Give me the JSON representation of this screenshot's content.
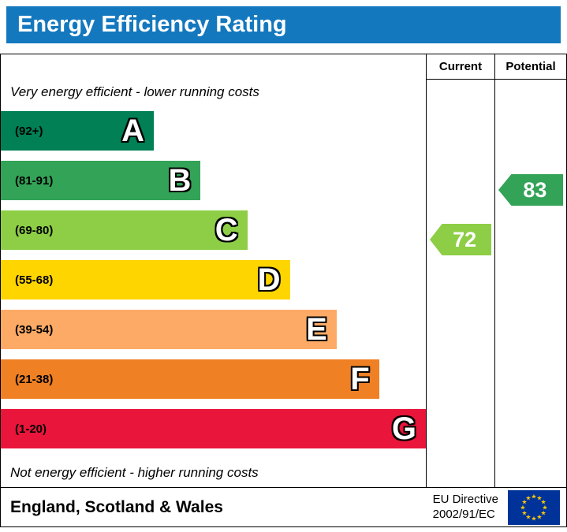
{
  "title": "Energy Efficiency Rating",
  "header": {
    "current": "Current",
    "potential": "Potential"
  },
  "notes": {
    "top": "Very energy efficient - lower running costs",
    "bottom": "Not energy efficient - higher running costs"
  },
  "footer": {
    "region": "England, Scotland & Wales",
    "directive_line1": "EU Directive",
    "directive_line2": "2002/91/EC"
  },
  "colors": {
    "title_bg": "#1478be",
    "title_text": "#ffffff",
    "flag_bg": "#003399",
    "flag_star": "#ffcc00"
  },
  "chart_data": {
    "type": "bar",
    "title": "Energy Efficiency Rating",
    "bands": [
      {
        "letter": "A",
        "range": "(92+)",
        "color": "#008054",
        "width_pct": 36
      },
      {
        "letter": "B",
        "range": "(81-91)",
        "color": "#33a357",
        "width_pct": 47
      },
      {
        "letter": "C",
        "range": "(69-80)",
        "color": "#8dce46",
        "width_pct": 58
      },
      {
        "letter": "D",
        "range": "(55-68)",
        "color": "#ffd500",
        "width_pct": 68
      },
      {
        "letter": "E",
        "range": "(39-54)",
        "color": "#fcaa65",
        "width_pct": 79
      },
      {
        "letter": "F",
        "range": "(21-38)",
        "color": "#ef8023",
        "width_pct": 89
      },
      {
        "letter": "G",
        "range": "(1-20)",
        "color": "#e9153b",
        "width_pct": 100
      }
    ],
    "current": {
      "label": "Current",
      "value": 72,
      "band": "C",
      "color": "#8dce46"
    },
    "potential": {
      "label": "Potential",
      "value": 83,
      "band": "B",
      "color": "#33a357"
    }
  }
}
